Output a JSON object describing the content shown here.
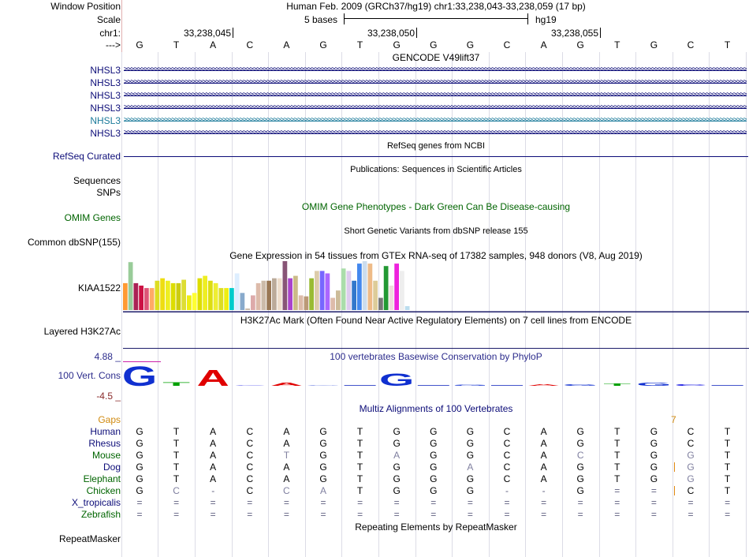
{
  "header": {
    "window_position_label": "Window Position",
    "assembly_text": "Human Feb. 2009 (GRCh37/hg19)   chr1:33,238,043-33,238,059 (17 bp)",
    "scale_label": "Scale",
    "scale_text": "5 bases",
    "scale_assembly": "hg19",
    "chrom_label": "chr1:",
    "ticks": [
      "33,238,045",
      "33,238,050",
      "33,238,055"
    ],
    "strand_label": "--->",
    "bases": [
      "G",
      "T",
      "A",
      "C",
      "A",
      "G",
      "T",
      "G",
      "G",
      "G",
      "C",
      "A",
      "G",
      "T",
      "G",
      "C",
      "T"
    ]
  },
  "gencode": {
    "title": "GENCODE V49lift37",
    "transcripts": [
      {
        "name": "NHSL3",
        "color": "#0c0c78"
      },
      {
        "name": "NHSL3",
        "color": "#0c0c78"
      },
      {
        "name": "NHSL3",
        "color": "#0c0c78"
      },
      {
        "name": "NHSL3",
        "color": "#0c0c78"
      },
      {
        "name": "NHSL3",
        "color": "#1a7a9a"
      },
      {
        "name": "NHSL3",
        "color": "#0c0c78"
      }
    ]
  },
  "refseq": {
    "title": "RefSeq genes from NCBI",
    "label": "RefSeq Curated"
  },
  "publications": {
    "title": "Publications: Sequences in Scientific Articles",
    "label1": "Sequences",
    "label2": "SNPs"
  },
  "omim": {
    "title": "OMIM Gene Phenotypes - Dark Green Can Be Disease-causing",
    "label": "OMIM Genes",
    "color": "#006400"
  },
  "dbsnp": {
    "title": "Short Genetic Variants from dbSNP release 155",
    "label": "Common dbSNP(155)"
  },
  "gtex": {
    "title": "Gene Expression in 54 tissues from GTEx RNA-seq of 17382 samples, 948 donors (V8, Aug 2019)",
    "label": "KIAA1522",
    "values": [
      0.55,
      0.98,
      0.55,
      0.5,
      0.45,
      0.45,
      0.6,
      0.65,
      0.6,
      0.55,
      0.55,
      0.62,
      0.3,
      0.35,
      0.65,
      0.7,
      0.6,
      0.55,
      0.45,
      0.45,
      0.45,
      0.75,
      0.35,
      0.03,
      0.3,
      0.55,
      0.6,
      0.6,
      0.65,
      0.65,
      1.0,
      0.65,
      0.7,
      0.3,
      0.28,
      0.65,
      0.8,
      0.8,
      0.75,
      0.25,
      0.4,
      0.85,
      0.8,
      0.6,
      0.95,
      1.0,
      0.95,
      0.6,
      0.25,
      0.9,
      0.5,
      0.95,
      0.8,
      0.08
    ],
    "colors": [
      "#ff9933",
      "#99cc99",
      "#aa2255",
      "#cc1144",
      "#dd5577",
      "#ffaa66",
      "#dddd22",
      "#eedd11",
      "#eeee22",
      "#dddd00",
      "#cccc11",
      "#dddd33",
      "#eeee11",
      "#ffff33",
      "#dddd00",
      "#eeee22",
      "#dddd11",
      "#eeee33",
      "#dddd22",
      "#eeee11",
      "#00cccc",
      "#ddeeff",
      "#88aacc",
      "#ccbbaa",
      "#ddaaaa",
      "#ddbbaa",
      "#ccbbaa",
      "#997755",
      "#bbaa99",
      "#eeddcc",
      "#885577",
      "#aa44cc",
      "#ccbb88",
      "#ddbbaa",
      "#bb9977",
      "#99bb33",
      "#ddccaa",
      "#7766ff",
      "#aa66ff",
      "#ddbbaa",
      "#ccbb99",
      "#aaddaa",
      "#ddccee",
      "#3377cc",
      "#4488ee",
      "#ccddee",
      "#eebb88",
      "#ddcc99",
      "#777777",
      "#229933",
      "#eedddd",
      "#ee22dd",
      "#eeeeee",
      "#bbddee"
    ]
  },
  "h3k27ac": {
    "title": "H3K27Ac Mark (Often Found Near Active Regulatory Elements) on 7 cell lines from ENCODE",
    "label": "Layered H3K27Ac"
  },
  "cons": {
    "title": "100 vertebrates Basewise Conservation by PhyloP",
    "label": "100 Vert. Cons",
    "max_label": "4.88 _",
    "min_label": "-4.5 _",
    "scores": [
      4.2,
      0.8,
      3.4,
      0.15,
      0.7,
      0.1,
      0,
      2.6,
      0,
      0.2,
      0,
      0.3,
      0.3,
      0.5,
      0.7,
      0.3,
      0
    ],
    "letter_colors": {
      "A": "#e00000",
      "C": "#0000e0",
      "G": "#1030d0",
      "T": "#00a000"
    }
  },
  "multiz": {
    "title": "Multiz Alignments of 100 Vertebrates",
    "gaps_label": "Gaps",
    "gap_marker": "7",
    "species": [
      {
        "name": "Human",
        "color": "#0c0c78",
        "row": [
          "G",
          "T",
          "A",
          "C",
          "A",
          "G",
          "T",
          "G",
          "G",
          "G",
          "C",
          "A",
          "G",
          "T",
          "G",
          "C",
          "T"
        ]
      },
      {
        "name": "Rhesus",
        "color": "#0c0c78",
        "row": [
          "G",
          "T",
          "A",
          "C",
          "A",
          "G",
          "T",
          "G",
          "G",
          "G",
          "C",
          "A",
          "G",
          "T",
          "G",
          "C",
          "T"
        ]
      },
      {
        "name": "Mouse",
        "color": "#006400",
        "row": [
          "G",
          "T",
          "A",
          "C",
          "T",
          "G",
          "T",
          "A",
          "G",
          "G",
          "C",
          "A",
          "C",
          "T",
          "G",
          "G",
          "T"
        ]
      },
      {
        "name": "Dog",
        "color": "#0c0c78",
        "row": [
          "G",
          "T",
          "A",
          "C",
          "A",
          "G",
          "T",
          "G",
          "G",
          "A",
          "C",
          "A",
          "G",
          "T",
          "G",
          "G",
          "T"
        ]
      },
      {
        "name": "Elephant",
        "color": "#006400",
        "row": [
          "G",
          "T",
          "A",
          "C",
          "A",
          "G",
          "T",
          "G",
          "G",
          "G",
          "C",
          "A",
          "G",
          "T",
          "G",
          "G",
          "T"
        ]
      },
      {
        "name": "Chicken",
        "color": "#006400",
        "row": [
          "G",
          "C",
          "-",
          "C",
          "C",
          "A",
          "T",
          "G",
          "G",
          "G",
          "-",
          "-",
          "G",
          "=",
          "=",
          "C",
          "T"
        ]
      },
      {
        "name": "X_tropicalis",
        "color": "#0c0c78",
        "row": [
          "=",
          "=",
          "=",
          "=",
          "=",
          "=",
          "=",
          "=",
          "=",
          "=",
          "=",
          "=",
          "=",
          "=",
          "=",
          "=",
          "="
        ]
      },
      {
        "name": "Zebrafish",
        "color": "#006400",
        "row": [
          "=",
          "=",
          "=",
          "=",
          "=",
          "=",
          "=",
          "=",
          "=",
          "=",
          "=",
          "=",
          "=",
          "=",
          "=",
          "=",
          "="
        ]
      }
    ]
  },
  "repeatmasker": {
    "title": "Repeating Elements by RepeatMasker",
    "label": "RepeatMasker"
  }
}
